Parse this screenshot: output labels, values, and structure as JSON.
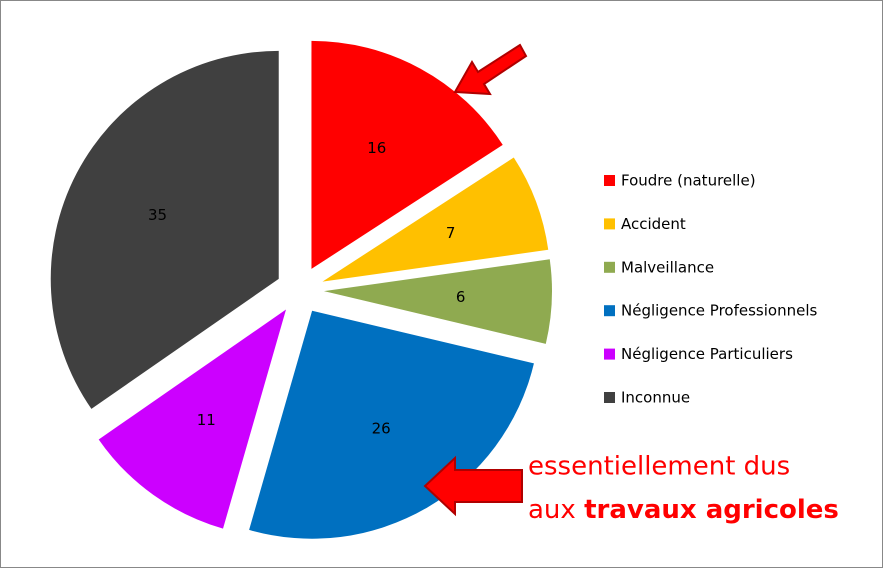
{
  "chart_data": {
    "type": "pie",
    "categories": [
      "Foudre (naturelle)",
      "Accident",
      "Malveillance",
      "Négligence Professionnels",
      "Négligence Particuliers",
      "Inconnue"
    ],
    "values": [
      16,
      7,
      6,
      26,
      11,
      35
    ],
    "colors": [
      "#ff0000",
      "#ffc000",
      "#8faa50",
      "#0070c0",
      "#cc00ff",
      "#404040"
    ],
    "legend": "right",
    "annotation": {
      "line1": "essentiellement dus",
      "line2_prefix": "aux",
      "line2_bold": "travaux agricoles"
    }
  }
}
